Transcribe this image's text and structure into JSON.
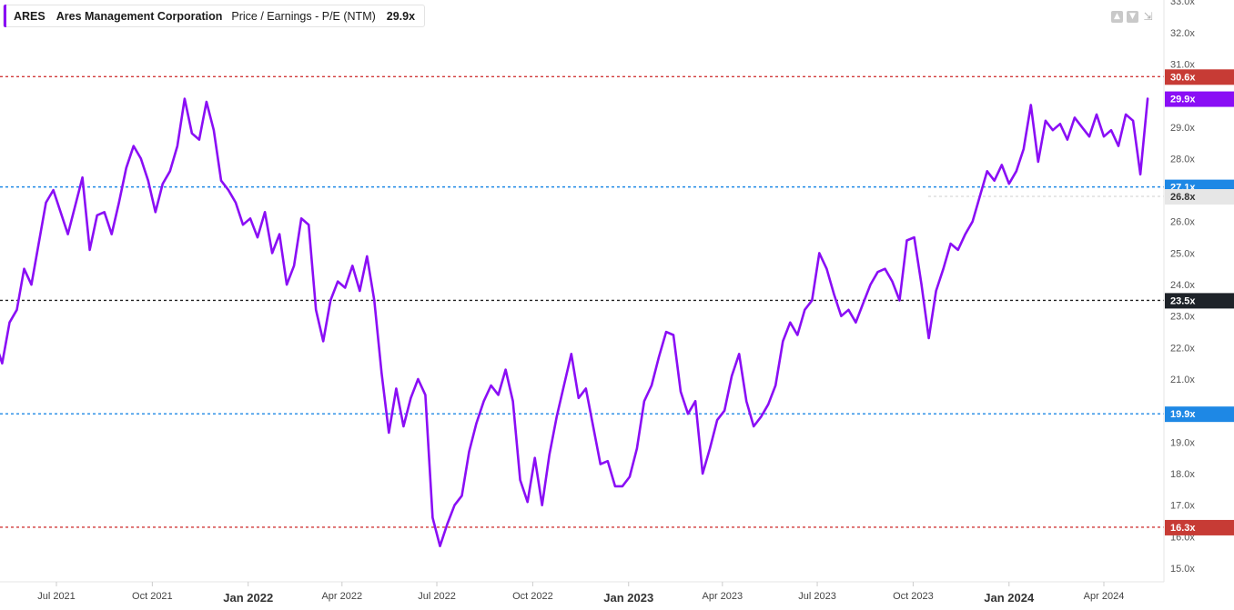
{
  "legend": {
    "ticker": "ARES",
    "company": "Ares Management Corporation",
    "metric": "Price / Earnings - P/E (NTM)",
    "value": "29.9x",
    "color": "#8a0ef5"
  },
  "toolbar": {
    "up_icon": "arrow-up-icon",
    "down_icon": "arrow-down-icon",
    "collapse_icon": "collapse-icon"
  },
  "chart_data": {
    "type": "line",
    "title": "",
    "xlabel": "",
    "ylabel": "",
    "ylim": [
      14.6,
      33.2
    ],
    "y_ticks": [
      "15.0x",
      "16.0x",
      "17.0x",
      "18.0x",
      "19.0x",
      "20.0x",
      "21.0x",
      "22.0x",
      "23.0x",
      "24.0x",
      "25.0x",
      "26.0x",
      "27.0x",
      "28.0x",
      "29.0x",
      "30.0x",
      "31.0x",
      "32.0x",
      "33.0x"
    ],
    "x_ticks": [
      {
        "label": "Jul 2021",
        "date": "2021-07-01",
        "year_start": false
      },
      {
        "label": "Oct 2021",
        "date": "2021-10-01",
        "year_start": false
      },
      {
        "label": "Jan 2022",
        "date": "2022-01-01",
        "year_start": true
      },
      {
        "label": "Apr 2022",
        "date": "2022-04-01",
        "year_start": false
      },
      {
        "label": "Jul 2022",
        "date": "2022-07-01",
        "year_start": false
      },
      {
        "label": "Oct 2022",
        "date": "2022-10-01",
        "year_start": false
      },
      {
        "label": "Jan 2023",
        "date": "2023-01-01",
        "year_start": true
      },
      {
        "label": "Apr 2023",
        "date": "2023-04-01",
        "year_start": false
      },
      {
        "label": "Jul 2023",
        "date": "2023-07-01",
        "year_start": false
      },
      {
        "label": "Oct 2023",
        "date": "2023-10-01",
        "year_start": false
      },
      {
        "label": "Jan 2024",
        "date": "2024-01-01",
        "year_start": true
      },
      {
        "label": "Apr 2024",
        "date": "2024-04-01",
        "year_start": false
      }
    ],
    "reference_lines": [
      {
        "value": 30.6,
        "label": "30.6x",
        "color": "#d13a3a",
        "tag_color": "#c73b35"
      },
      {
        "value": 27.1,
        "label": "27.1x",
        "color": "#1e88e5",
        "tag_color": "#1e88e5"
      },
      {
        "value": 23.5,
        "label": "23.5x",
        "color": "#222222",
        "tag_color": "#1e2329"
      },
      {
        "value": 19.9,
        "label": "19.9x",
        "color": "#1e88e5",
        "tag_color": "#1e88e5"
      },
      {
        "value": 16.3,
        "label": "16.3x",
        "color": "#d13a3a",
        "tag_color": "#c73b35"
      }
    ],
    "marker_lines": [
      {
        "value": 26.8,
        "label": "26.8x",
        "color": "#cfcfcf",
        "tag_color": "#e6e6e6"
      }
    ],
    "current": {
      "value": 29.9,
      "label": "29.9x"
    },
    "series": [
      {
        "name": "ARES",
        "color": "#8a0ef5",
        "points": [
          [
            "2021-05-03",
            22.2
          ],
          [
            "2021-05-10",
            21.5
          ],
          [
            "2021-05-17",
            22.8
          ],
          [
            "2021-05-24",
            23.2
          ],
          [
            "2021-05-31",
            24.5
          ],
          [
            "2021-06-07",
            24.0
          ],
          [
            "2021-06-14",
            25.3
          ],
          [
            "2021-06-21",
            26.6
          ],
          [
            "2021-06-28",
            27.0
          ],
          [
            "2021-07-05",
            26.3
          ],
          [
            "2021-07-12",
            25.6
          ],
          [
            "2021-07-19",
            26.5
          ],
          [
            "2021-07-26",
            27.4
          ],
          [
            "2021-08-02",
            25.1
          ],
          [
            "2021-08-09",
            26.2
          ],
          [
            "2021-08-16",
            26.3
          ],
          [
            "2021-08-23",
            25.6
          ],
          [
            "2021-08-30",
            26.6
          ],
          [
            "2021-09-06",
            27.7
          ],
          [
            "2021-09-13",
            28.4
          ],
          [
            "2021-09-20",
            28.0
          ],
          [
            "2021-09-27",
            27.3
          ],
          [
            "2021-10-04",
            26.3
          ],
          [
            "2021-10-11",
            27.2
          ],
          [
            "2021-10-18",
            27.6
          ],
          [
            "2021-10-25",
            28.4
          ],
          [
            "2021-11-01",
            29.9
          ],
          [
            "2021-11-08",
            28.8
          ],
          [
            "2021-11-15",
            28.6
          ],
          [
            "2021-11-22",
            29.8
          ],
          [
            "2021-11-29",
            28.9
          ],
          [
            "2021-12-06",
            27.3
          ],
          [
            "2021-12-13",
            27.0
          ],
          [
            "2021-12-20",
            26.6
          ],
          [
            "2021-12-27",
            25.9
          ],
          [
            "2022-01-03",
            26.1
          ],
          [
            "2022-01-10",
            25.5
          ],
          [
            "2022-01-17",
            26.3
          ],
          [
            "2022-01-24",
            25.0
          ],
          [
            "2022-01-31",
            25.6
          ],
          [
            "2022-02-07",
            24.0
          ],
          [
            "2022-02-14",
            24.6
          ],
          [
            "2022-02-21",
            26.1
          ],
          [
            "2022-02-28",
            25.9
          ],
          [
            "2022-03-07",
            23.2
          ],
          [
            "2022-03-14",
            22.2
          ],
          [
            "2022-03-21",
            23.5
          ],
          [
            "2022-03-28",
            24.1
          ],
          [
            "2022-04-04",
            23.9
          ],
          [
            "2022-04-11",
            24.6
          ],
          [
            "2022-04-18",
            23.8
          ],
          [
            "2022-04-25",
            24.9
          ],
          [
            "2022-05-02",
            23.5
          ],
          [
            "2022-05-09",
            21.2
          ],
          [
            "2022-05-16",
            19.3
          ],
          [
            "2022-05-23",
            20.7
          ],
          [
            "2022-05-30",
            19.5
          ],
          [
            "2022-06-06",
            20.4
          ],
          [
            "2022-06-13",
            21.0
          ],
          [
            "2022-06-20",
            20.5
          ],
          [
            "2022-06-27",
            16.6
          ],
          [
            "2022-07-04",
            15.7
          ],
          [
            "2022-07-11",
            16.4
          ],
          [
            "2022-07-18",
            17.0
          ],
          [
            "2022-07-25",
            17.3
          ],
          [
            "2022-08-01",
            18.7
          ],
          [
            "2022-08-08",
            19.6
          ],
          [
            "2022-08-15",
            20.3
          ],
          [
            "2022-08-22",
            20.8
          ],
          [
            "2022-08-29",
            20.5
          ],
          [
            "2022-09-05",
            21.3
          ],
          [
            "2022-09-12",
            20.3
          ],
          [
            "2022-09-19",
            17.8
          ],
          [
            "2022-09-26",
            17.1
          ],
          [
            "2022-10-03",
            18.5
          ],
          [
            "2022-10-10",
            17.0
          ],
          [
            "2022-10-17",
            18.6
          ],
          [
            "2022-10-24",
            19.8
          ],
          [
            "2022-10-31",
            20.8
          ],
          [
            "2022-11-07",
            21.8
          ],
          [
            "2022-11-14",
            20.4
          ],
          [
            "2022-11-21",
            20.7
          ],
          [
            "2022-11-28",
            19.5
          ],
          [
            "2022-12-05",
            18.3
          ],
          [
            "2022-12-12",
            18.4
          ],
          [
            "2022-12-19",
            17.6
          ],
          [
            "2022-12-26",
            17.6
          ],
          [
            "2023-01-02",
            17.9
          ],
          [
            "2023-01-09",
            18.8
          ],
          [
            "2023-01-16",
            20.3
          ],
          [
            "2023-01-23",
            20.8
          ],
          [
            "2023-01-30",
            21.7
          ],
          [
            "2023-02-06",
            22.5
          ],
          [
            "2023-02-13",
            22.4
          ],
          [
            "2023-02-20",
            20.6
          ],
          [
            "2023-02-27",
            19.9
          ],
          [
            "2023-03-06",
            20.3
          ],
          [
            "2023-03-13",
            18.0
          ],
          [
            "2023-03-20",
            18.8
          ],
          [
            "2023-03-27",
            19.7
          ],
          [
            "2023-04-03",
            20.0
          ],
          [
            "2023-04-10",
            21.1
          ],
          [
            "2023-04-17",
            21.8
          ],
          [
            "2023-04-24",
            20.3
          ],
          [
            "2023-05-01",
            19.5
          ],
          [
            "2023-05-08",
            19.8
          ],
          [
            "2023-05-15",
            20.2
          ],
          [
            "2023-05-22",
            20.8
          ],
          [
            "2023-05-29",
            22.2
          ],
          [
            "2023-06-05",
            22.8
          ],
          [
            "2023-06-12",
            22.4
          ],
          [
            "2023-06-19",
            23.2
          ],
          [
            "2023-06-26",
            23.5
          ],
          [
            "2023-07-03",
            25.0
          ],
          [
            "2023-07-10",
            24.5
          ],
          [
            "2023-07-17",
            23.7
          ],
          [
            "2023-07-24",
            23.0
          ],
          [
            "2023-07-31",
            23.2
          ],
          [
            "2023-08-07",
            22.8
          ],
          [
            "2023-08-14",
            23.4
          ],
          [
            "2023-08-21",
            24.0
          ],
          [
            "2023-08-28",
            24.4
          ],
          [
            "2023-09-04",
            24.5
          ],
          [
            "2023-09-11",
            24.1
          ],
          [
            "2023-09-18",
            23.5
          ],
          [
            "2023-09-25",
            25.4
          ],
          [
            "2023-10-02",
            25.5
          ],
          [
            "2023-10-09",
            24.0
          ],
          [
            "2023-10-16",
            22.3
          ],
          [
            "2023-10-23",
            23.8
          ],
          [
            "2023-10-30",
            24.5
          ],
          [
            "2023-11-06",
            25.3
          ],
          [
            "2023-11-13",
            25.1
          ],
          [
            "2023-11-20",
            25.6
          ],
          [
            "2023-11-27",
            26.0
          ],
          [
            "2023-12-04",
            26.8
          ],
          [
            "2023-12-11",
            27.6
          ],
          [
            "2023-12-18",
            27.3
          ],
          [
            "2023-12-25",
            27.8
          ],
          [
            "2024-01-01",
            27.2
          ],
          [
            "2024-01-08",
            27.6
          ],
          [
            "2024-01-15",
            28.3
          ],
          [
            "2024-01-22",
            29.7
          ],
          [
            "2024-01-29",
            27.9
          ],
          [
            "2024-02-05",
            29.2
          ],
          [
            "2024-02-12",
            28.9
          ],
          [
            "2024-02-19",
            29.1
          ],
          [
            "2024-02-26",
            28.6
          ],
          [
            "2024-03-04",
            29.3
          ],
          [
            "2024-03-11",
            29.0
          ],
          [
            "2024-03-18",
            28.7
          ],
          [
            "2024-03-25",
            29.4
          ],
          [
            "2024-04-01",
            28.7
          ],
          [
            "2024-04-08",
            28.9
          ],
          [
            "2024-04-15",
            28.4
          ],
          [
            "2024-04-22",
            29.4
          ],
          [
            "2024-04-29",
            29.2
          ],
          [
            "2024-05-06",
            27.5
          ],
          [
            "2024-05-13",
            29.9
          ]
        ]
      }
    ]
  }
}
